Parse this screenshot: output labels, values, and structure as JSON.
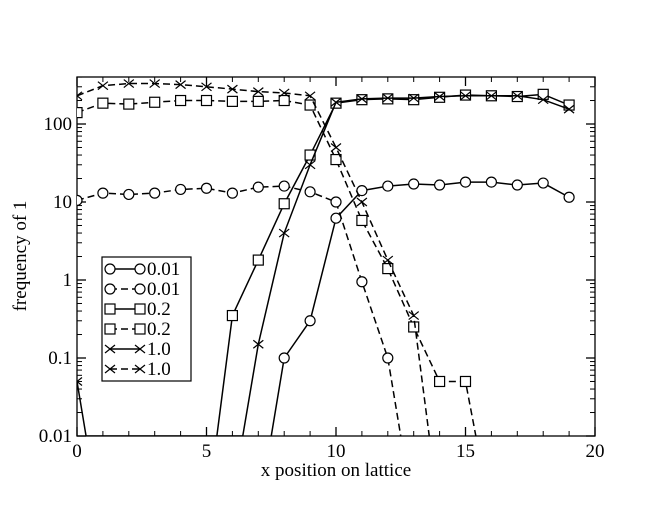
{
  "chart_data": {
    "type": "line",
    "title": "",
    "xlabel": "x position on lattice",
    "ylabel": "frequency of 1",
    "xlim": [
      0,
      20
    ],
    "ylim": [
      0.01,
      400
    ],
    "yscale": "log",
    "x_ticks": [
      0,
      5,
      10,
      15,
      20
    ],
    "x_tick_labels": [
      "0",
      "5",
      "10",
      "15",
      "20"
    ],
    "y_ticks": [
      0.01,
      0.1,
      1,
      10,
      100
    ],
    "y_tick_labels": [
      "0.01",
      "0.1",
      "1",
      "10",
      "100"
    ],
    "grid": false,
    "legend_position": "lower-left",
    "series": [
      {
        "name": "0.01",
        "marker": "circle",
        "dash": "solid",
        "x": [
          7.5,
          8,
          9,
          10,
          11,
          12,
          13,
          14,
          15,
          16,
          17,
          18,
          19
        ],
        "y": [
          0.01,
          0.1,
          0.3,
          6.2,
          14,
          16,
          17,
          16.5,
          18,
          18,
          16.5,
          17.5,
          11.5
        ]
      },
      {
        "name": "0.01",
        "marker": "circle",
        "dash": "dashed",
        "x": [
          0,
          1,
          2,
          3,
          4,
          5,
          6,
          7,
          8,
          9,
          10,
          11,
          12,
          12.5
        ],
        "y": [
          10.5,
          13,
          12.5,
          13,
          14.5,
          15,
          13,
          15.5,
          16,
          13.5,
          10,
          0.95,
          0.1,
          0.01
        ]
      },
      {
        "name": "0.2",
        "marker": "square",
        "dash": "solid",
        "x": [
          5.4,
          6,
          7,
          8,
          9,
          10,
          11,
          12,
          13,
          14,
          15,
          16,
          17,
          18,
          19
        ],
        "y": [
          0.01,
          0.35,
          1.8,
          9.5,
          40,
          185,
          205,
          210,
          205,
          220,
          235,
          230,
          225,
          240,
          175
        ]
      },
      {
        "name": "0.2",
        "marker": "square",
        "dash": "dashed",
        "x": [
          0,
          1,
          2,
          3,
          4,
          5,
          6,
          7,
          8,
          9,
          10,
          11,
          12,
          13,
          14,
          15,
          15.4
        ],
        "y": [
          140,
          185,
          180,
          190,
          200,
          200,
          195,
          195,
          200,
          175,
          35,
          5.8,
          1.4,
          0.25,
          0.05,
          0.05,
          0.01
        ]
      },
      {
        "name": "1.0",
        "marker": "x",
        "dash": "solid",
        "x": [
          0,
          0.35,
          6.4,
          7,
          8,
          9,
          10,
          11,
          12,
          13,
          14,
          15,
          16,
          17,
          18,
          19
        ],
        "y": [
          0.05,
          0.01,
          0.01,
          0.15,
          4,
          30,
          190,
          210,
          215,
          215,
          225,
          230,
          230,
          230,
          205,
          155
        ]
      },
      {
        "name": "1.0",
        "marker": "x",
        "dash": "dashed",
        "x": [
          0,
          1,
          2,
          3,
          4,
          5,
          6,
          7,
          8,
          9,
          10,
          11,
          12,
          13,
          13.6
        ],
        "y": [
          230,
          310,
          330,
          330,
          320,
          300,
          280,
          260,
          250,
          230,
          50,
          10,
          1.8,
          0.35,
          0.01
        ]
      }
    ]
  }
}
